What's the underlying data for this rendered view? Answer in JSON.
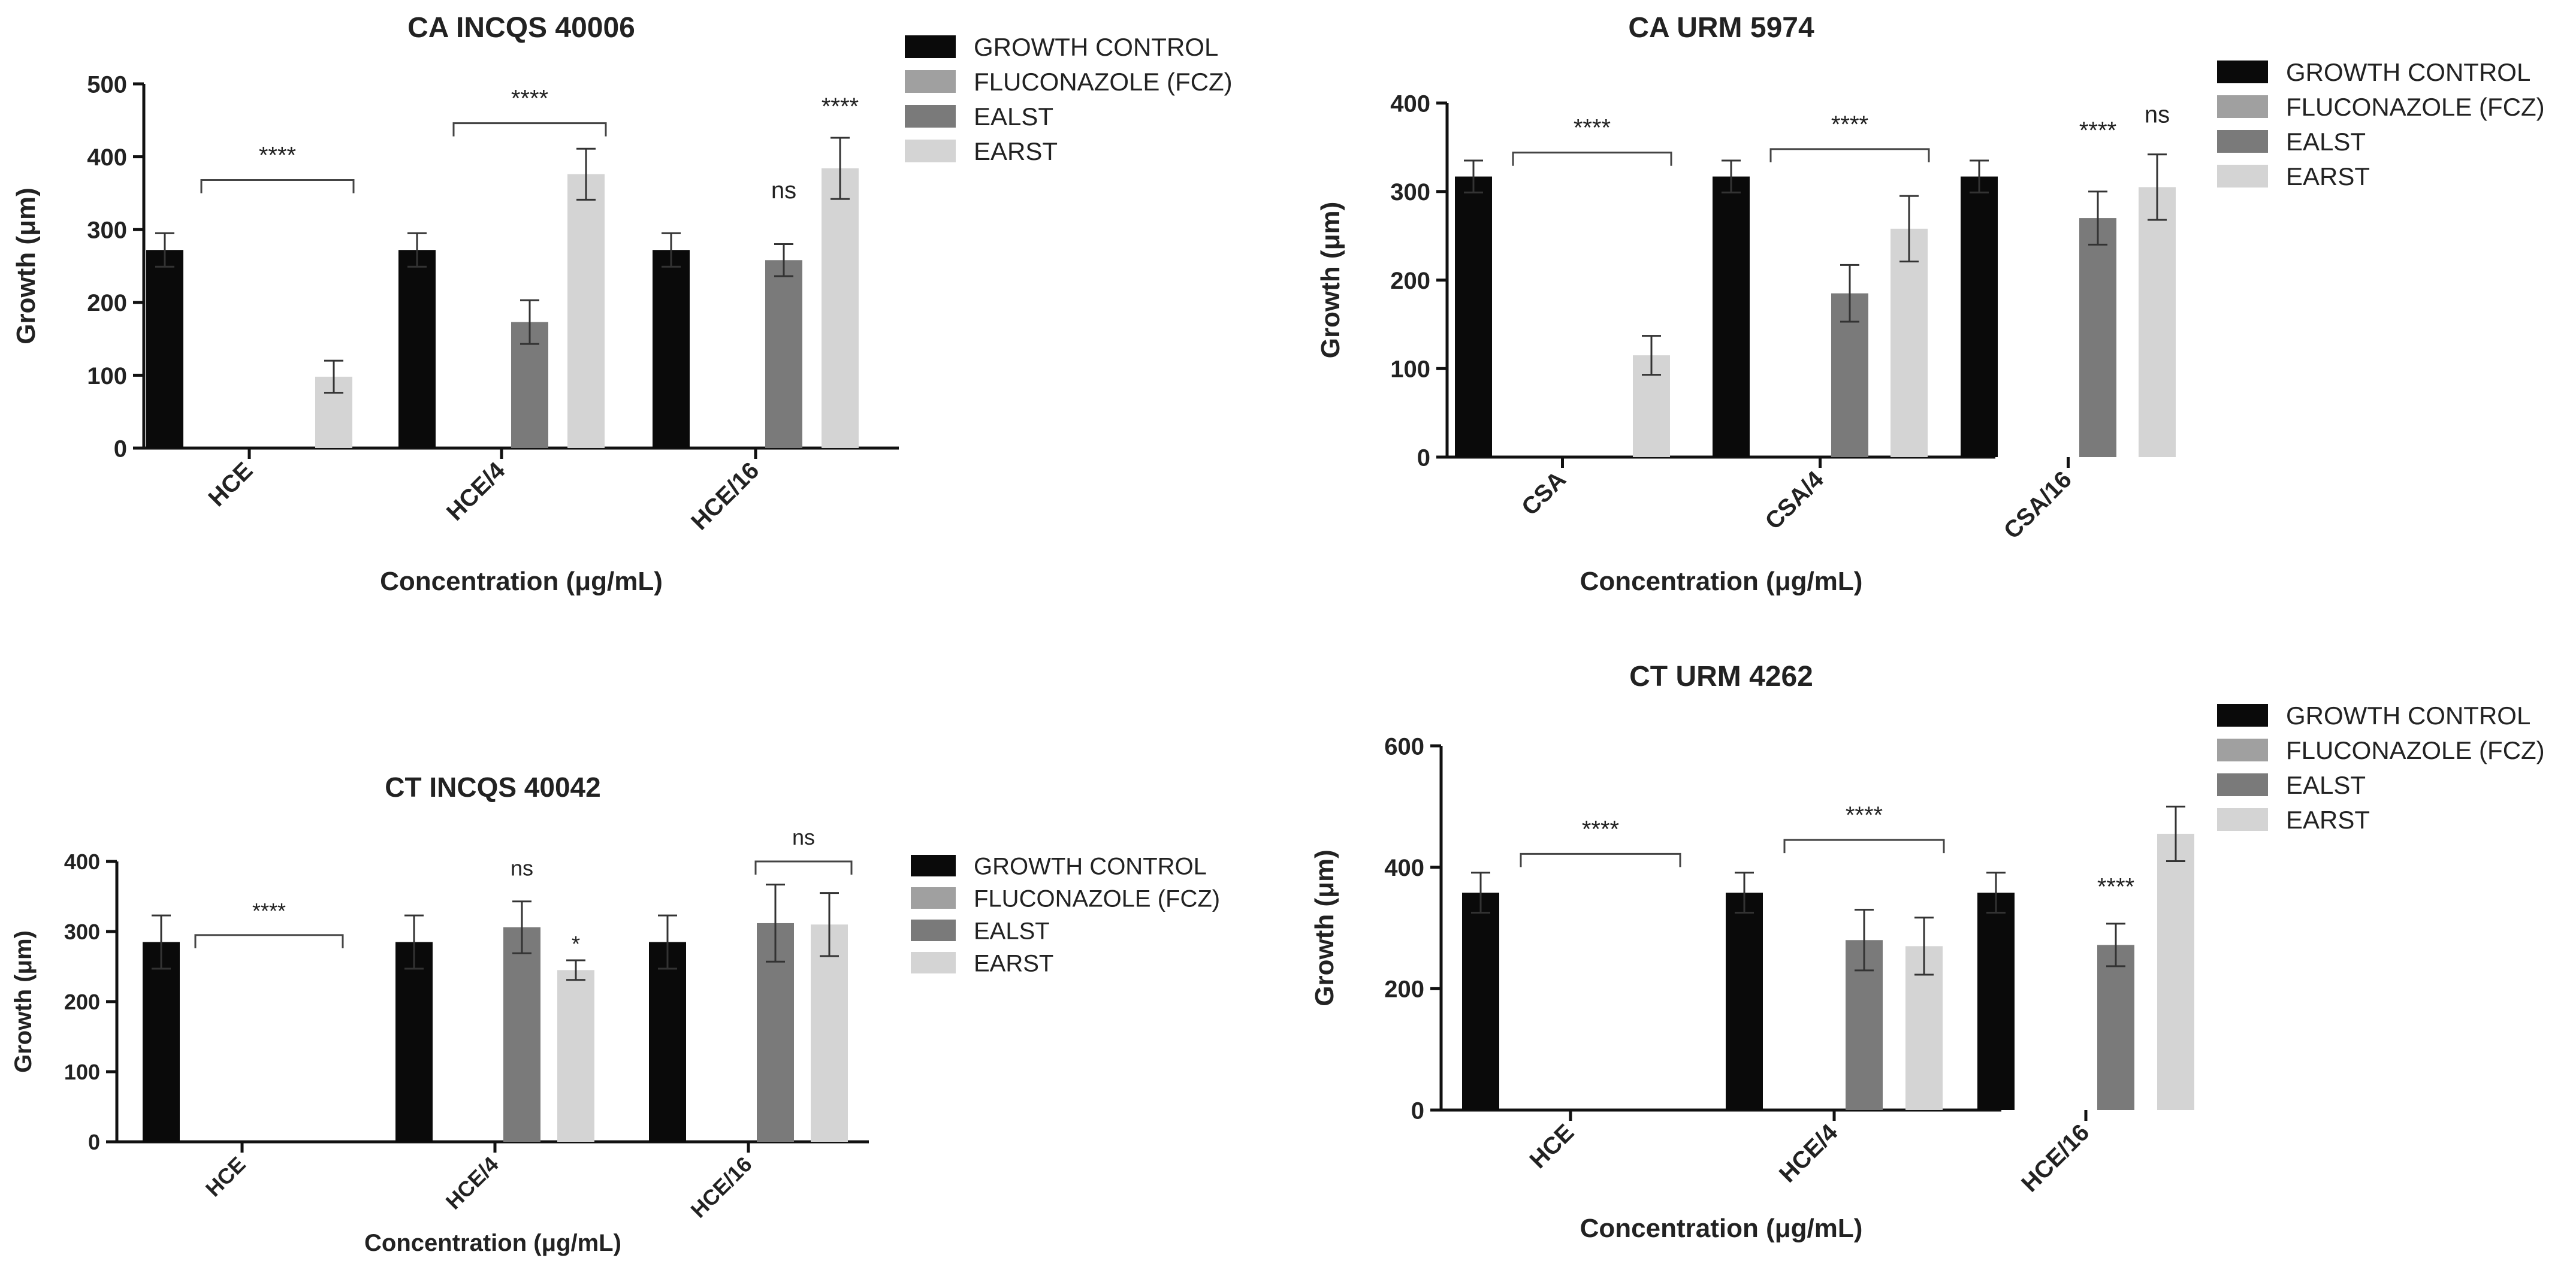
{
  "chart_data": [
    {
      "type": "bar",
      "title": "CA INCQS 40006",
      "xlabel": "Concentration (μg/mL)",
      "ylabel": "Growth (μm)",
      "ylim": [
        0,
        500
      ],
      "yticks": [
        0,
        100,
        200,
        300,
        400,
        500
      ],
      "categories": [
        "HCE",
        "HCE/4",
        "HCE/16"
      ],
      "series": [
        {
          "name": "GROWTH CONTROL",
          "color": "#0a0a0a",
          "values": [
            272,
            272,
            272
          ],
          "errors": [
            23,
            23,
            23
          ]
        },
        {
          "name": "FLUCONAZOLE (FCZ)",
          "color": "#a0a0a0",
          "values": [
            0,
            0,
            0
          ],
          "errors": [
            0,
            0,
            0
          ]
        },
        {
          "name": "EALST",
          "color": "#7a7a7a",
          "values": [
            0,
            173,
            258
          ],
          "errors": [
            0,
            30,
            22
          ]
        },
        {
          "name": "EARST",
          "color": "#d4d4d4",
          "values": [
            98,
            376,
            384
          ],
          "errors": [
            22,
            35,
            42
          ]
        }
      ],
      "annotations": [
        {
          "text": "****",
          "category": 0,
          "type": "bracket",
          "y": 368
        },
        {
          "text": "****",
          "category": 1,
          "type": "bracket",
          "y": 446
        },
        {
          "text": "ns",
          "category": 2,
          "series": 2,
          "y": 343
        },
        {
          "text": "****",
          "category": 2,
          "series": 3,
          "y": 458
        }
      ]
    },
    {
      "type": "bar",
      "title": "CA URM 5974",
      "xlabel": "Concentration (μg/mL)",
      "ylabel": "Growth (μm)",
      "ylim": [
        0,
        400
      ],
      "yticks": [
        0,
        100,
        200,
        300,
        400
      ],
      "categories": [
        "CSA",
        "CSA/4",
        "CSA/16"
      ],
      "series": [
        {
          "name": "GROWTH CONTROL",
          "color": "#0a0a0a",
          "values": [
            317,
            317,
            317
          ],
          "errors": [
            18,
            18,
            18
          ]
        },
        {
          "name": "FLUCONAZOLE (FCZ)",
          "color": "#a0a0a0",
          "values": [
            0,
            0,
            0
          ],
          "errors": [
            0,
            0,
            0
          ]
        },
        {
          "name": "EALST",
          "color": "#7a7a7a",
          "values": [
            0,
            185,
            270
          ],
          "errors": [
            0,
            32,
            30
          ]
        },
        {
          "name": "EARST",
          "color": "#d4d4d4",
          "values": [
            115,
            258,
            305
          ],
          "errors": [
            22,
            37,
            37
          ]
        }
      ],
      "annotations": [
        {
          "text": "****",
          "category": 0,
          "type": "bracket",
          "y": 344
        },
        {
          "text": "****",
          "category": 1,
          "type": "bracket",
          "y": 348
        },
        {
          "text": "****",
          "category": 2,
          "series": 2,
          "y": 360
        },
        {
          "text": "ns",
          "category": 2,
          "series": 3,
          "y": 378
        }
      ]
    },
    {
      "type": "bar",
      "title": "CT INCQS 40042",
      "xlabel": "Concentration (μg/mL)",
      "ylabel": "Growth (μm)",
      "ylim": [
        0,
        400
      ],
      "yticks": [
        0,
        100,
        200,
        300,
        400
      ],
      "categories": [
        "HCE",
        "HCE/4",
        "HCE/16"
      ],
      "series": [
        {
          "name": "GROWTH CONTROL",
          "color": "#0a0a0a",
          "values": [
            285,
            285,
            285
          ],
          "errors": [
            38,
            38,
            38
          ]
        },
        {
          "name": "FLUCONAZOLE (FCZ)",
          "color": "#a0a0a0",
          "values": [
            0,
            0,
            0
          ],
          "errors": [
            0,
            0,
            0
          ]
        },
        {
          "name": "EALST",
          "color": "#7a7a7a",
          "values": [
            0,
            306,
            312
          ],
          "errors": [
            0,
            37,
            55
          ]
        },
        {
          "name": "EARST",
          "color": "#d4d4d4",
          "values": [
            0,
            245,
            310
          ],
          "errors": [
            0,
            14,
            45
          ]
        }
      ],
      "annotations": [
        {
          "text": "****",
          "category": 0,
          "type": "bracket",
          "y": 295
        },
        {
          "text": "ns",
          "category": 1,
          "series": 2,
          "y": 380
        },
        {
          "text": "*",
          "category": 1,
          "series": 3,
          "y": 272
        },
        {
          "text": "ns",
          "category": 2,
          "type": "bracket",
          "y": 400
        }
      ]
    },
    {
      "type": "bar",
      "title": "CT URM 4262",
      "xlabel": "Concentration (μg/mL)",
      "ylabel": "Growth (μm)",
      "ylim": [
        0,
        600
      ],
      "yticks": [
        0,
        200,
        400,
        600
      ],
      "categories": [
        "HCE",
        "HCE/4",
        "HCE/16"
      ],
      "series": [
        {
          "name": "GROWTH CONTROL",
          "color": "#0a0a0a",
          "values": [
            358,
            358,
            358
          ],
          "errors": [
            33,
            33,
            33
          ]
        },
        {
          "name": "FLUCONAZOLE (FCZ)",
          "color": "#a0a0a0",
          "values": [
            0,
            0,
            0
          ],
          "errors": [
            0,
            0,
            0
          ]
        },
        {
          "name": "EALST",
          "color": "#7a7a7a",
          "values": [
            0,
            280,
            272
          ],
          "errors": [
            0,
            50,
            35
          ]
        },
        {
          "name": "EARST",
          "color": "#d4d4d4",
          "values": [
            0,
            270,
            455
          ],
          "errors": [
            0,
            47,
            45
          ]
        }
      ],
      "annotations": [
        {
          "text": "****",
          "category": 0,
          "type": "bracket",
          "y": 422
        },
        {
          "text": "****",
          "category": 1,
          "type": "bracket",
          "y": 445
        },
        {
          "text": "****",
          "category": 2,
          "series": 2,
          "y": 355
        }
      ]
    }
  ]
}
